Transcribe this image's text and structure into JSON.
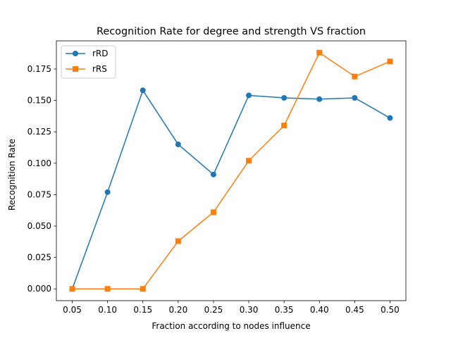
{
  "chart_data": {
    "type": "line",
    "title": "Recognition Rate for degree and strength VS fraction",
    "xlabel": "Fraction according to nodes influence",
    "ylabel": "Recognition Rate",
    "x": [
      0.05,
      0.1,
      0.15,
      0.2,
      0.25,
      0.3,
      0.35,
      0.4,
      0.45,
      0.5
    ],
    "x_tick_labels": [
      "0.05",
      "0.10",
      "0.15",
      "0.20",
      "0.25",
      "0.30",
      "0.35",
      "0.40",
      "0.45",
      "0.50"
    ],
    "xlim": [
      0.0275,
      0.5225
    ],
    "ylim": [
      -0.0094,
      0.1974
    ],
    "y_ticks": [
      0.0,
      0.025,
      0.05,
      0.075,
      0.1,
      0.125,
      0.15,
      0.175
    ],
    "y_tick_labels": [
      "0.000",
      "0.025",
      "0.050",
      "0.075",
      "0.100",
      "0.125",
      "0.150",
      "0.175"
    ],
    "grid": false,
    "legend_position": "upper-left",
    "series": [
      {
        "name": "rRD",
        "color": "#1f77b4",
        "marker": "circle",
        "values": [
          0.0,
          0.077,
          0.158,
          0.115,
          0.091,
          0.154,
          0.152,
          0.151,
          0.152,
          0.136
        ]
      },
      {
        "name": "rRS",
        "color": "#ff7f0e",
        "marker": "square",
        "values": [
          0.0,
          0.0,
          0.0,
          0.038,
          0.061,
          0.102,
          0.13,
          0.188,
          0.169,
          0.181
        ]
      }
    ]
  }
}
